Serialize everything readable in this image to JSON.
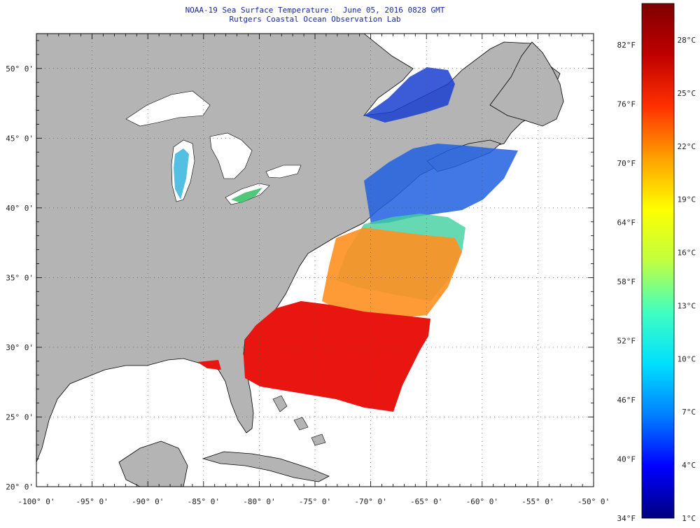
{
  "title": {
    "line1": "NOAA-19 Sea Surface Temperature:  June 05, 2016 0828 GMT",
    "line2": "Rutgers Coastal Ocean Observation Lab"
  },
  "map": {
    "lon_range": [
      -100,
      -50
    ],
    "lat_range": [
      20,
      52.5
    ],
    "land_color": "#b4b4b4",
    "no_data_color": "#ffffff",
    "coastline_color": "#000000",
    "gridlines": "dotted",
    "x_tick_labels": [
      "-100° 0'",
      "-95° 0'",
      "-90° 0'",
      "-85° 0'",
      "-80° 0'",
      "-75° 0'",
      "-70° 0'",
      "-65° 0'",
      "-60° 0'",
      "-55° 0'",
      "-50° 0'"
    ],
    "y_tick_labels": [
      "20° 0'",
      "25° 0'",
      "30° 0'",
      "35° 0'",
      "40° 0'",
      "45° 0'",
      "50° 0'"
    ],
    "swath_description_color_warm": "#e01010",
    "swath_description_color_cool": "#1030d0"
  },
  "colorbar": {
    "fahrenheit_labels": [
      "34°F",
      "40°F",
      "46°F",
      "52°F",
      "58°F",
      "64°F",
      "70°F",
      "76°F",
      "82°F"
    ],
    "celsius_labels": [
      "1°C",
      "4°C",
      "7°C",
      "10°C",
      "13°C",
      "16°C",
      "19°C",
      "22°C",
      "25°C",
      "28°C"
    ],
    "colors": [
      "#00007f",
      "#0000ff",
      "#0080ff",
      "#00e0ff",
      "#40ffc0",
      "#c0ff40",
      "#ffff00",
      "#ffa000",
      "#ff3000",
      "#c00000",
      "#7f0000"
    ]
  }
}
